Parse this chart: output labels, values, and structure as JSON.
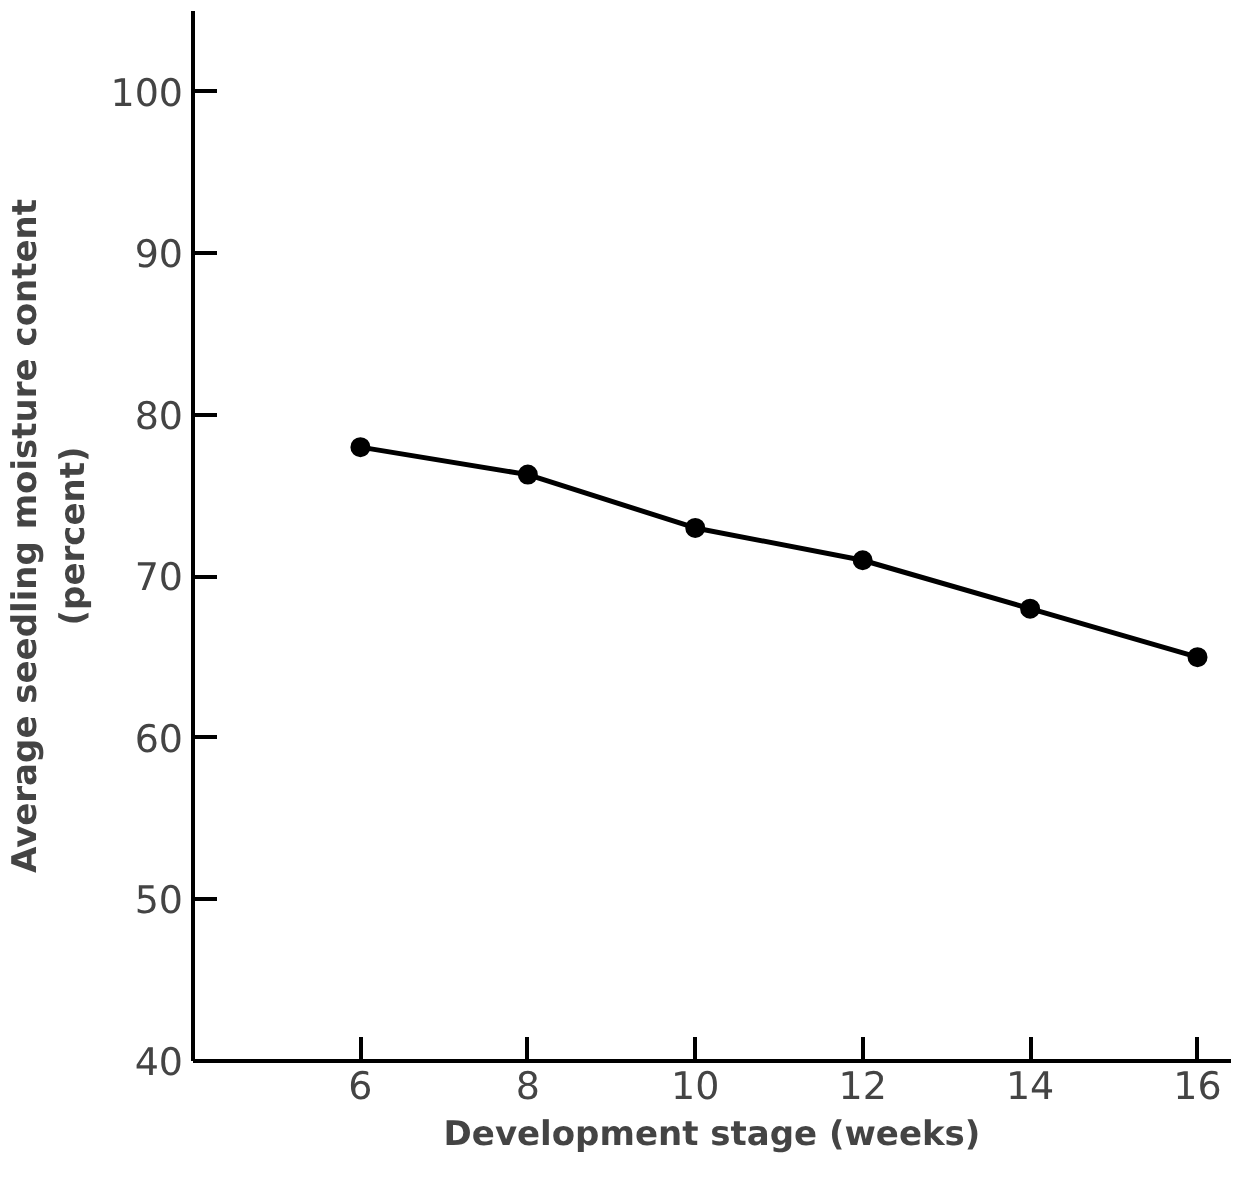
{
  "chart_data": {
    "type": "line",
    "xlabel": "Development stage (weeks)",
    "ylabel": "Average seedling moisture content\n(percent)",
    "x": [
      6,
      8,
      10,
      12,
      14,
      16
    ],
    "series": [
      {
        "color": "#000000",
        "values": [
          78,
          76.3,
          73,
          71,
          68,
          65
        ]
      }
    ],
    "xlim": [
      4,
      16.4
    ],
    "xticks": [
      6,
      8,
      10,
      12,
      14,
      16
    ],
    "ylim": [
      40,
      105
    ],
    "yticks": [
      40,
      50,
      60,
      70,
      80,
      90,
      100
    ],
    "grid": false,
    "marker": "circle",
    "line_style": "solid"
  }
}
